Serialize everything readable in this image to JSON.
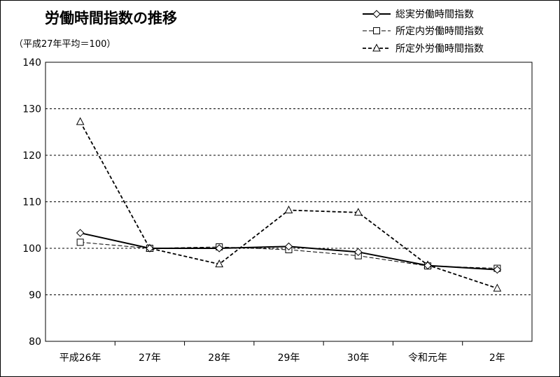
{
  "chart_data": {
    "type": "line",
    "title": "労働時間指数の推移",
    "subtitle": "（平成27年平均＝100）",
    "categories": [
      "平成26年",
      "27年",
      "28年",
      "29年",
      "30年",
      "令和元年",
      "2年"
    ],
    "ylim": [
      80,
      140
    ],
    "yticks": [
      80,
      90,
      100,
      110,
      120,
      130,
      140
    ],
    "grid": true,
    "legend_position": "top-right",
    "series": [
      {
        "name": "総実労働時間指数",
        "values": [
          103.3,
          100.0,
          100.0,
          100.4,
          99.2,
          96.3,
          95.4
        ],
        "line": "solid",
        "marker": "diamond",
        "color": "#000000"
      },
      {
        "name": "所定内労働時間指数",
        "values": [
          101.3,
          100.0,
          100.3,
          99.7,
          98.4,
          96.2,
          95.7
        ],
        "line": "dashed-thin",
        "marker": "square",
        "color": "#000000"
      },
      {
        "name": "所定外労働時間指数",
        "values": [
          127.2,
          100.0,
          96.6,
          108.2,
          107.7,
          96.4,
          91.4
        ],
        "line": "dashed",
        "marker": "triangle",
        "color": "#000000"
      }
    ]
  }
}
